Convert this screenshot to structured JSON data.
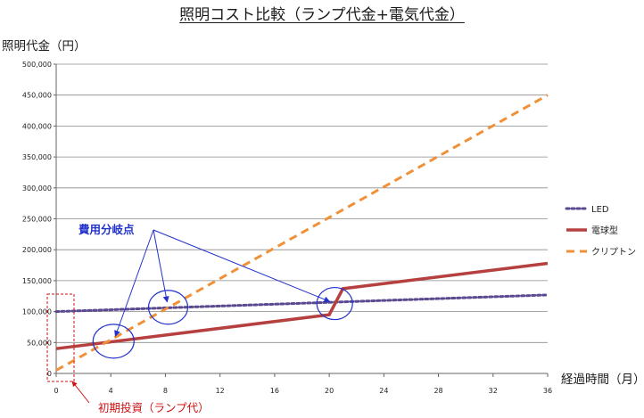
{
  "chart_data": {
    "type": "line",
    "title": "照明コスト比較（ランプ代金+電気代金）",
    "ylabel": "照明代金（円）",
    "xlabel": "経過時間（月）",
    "xlim": [
      0,
      36
    ],
    "ylim": [
      0,
      500000
    ],
    "x_ticks": [
      0,
      4,
      8,
      12,
      16,
      20,
      24,
      28,
      32,
      36
    ],
    "y_ticks": [
      0,
      50000,
      100000,
      150000,
      200000,
      250000,
      300000,
      350000,
      400000,
      450000,
      500000
    ],
    "y_tick_labels": [
      "0",
      "50,000",
      "100,000",
      "150,000",
      "200,000",
      "250,000",
      "300,000",
      "350,000",
      "400,000",
      "450,000",
      "500,000"
    ],
    "grid": true,
    "legend_position": "right",
    "series": [
      {
        "name": "LED",
        "color": "#5b4a8f",
        "style": "dotted",
        "points": [
          [
            0,
            100000
          ],
          [
            36,
            127000
          ]
        ]
      },
      {
        "name": "電球型",
        "color": "#b5403f",
        "style": "solid",
        "points": [
          [
            0,
            40000
          ],
          [
            20,
            95000
          ],
          [
            21,
            137000
          ],
          [
            36,
            178000
          ]
        ]
      },
      {
        "name": "クリプトン",
        "color": "#f0913a",
        "style": "dashed",
        "points": [
          [
            0,
            5000
          ],
          [
            36,
            450000
          ]
        ]
      }
    ],
    "annotations": {
      "crossover_label": "費用分岐点",
      "initial_label": "初期投資（ランプ代）",
      "crossover_points": [
        [
          4.2,
          52000
        ],
        [
          8.2,
          107000
        ],
        [
          20.4,
          113000
        ]
      ]
    }
  }
}
